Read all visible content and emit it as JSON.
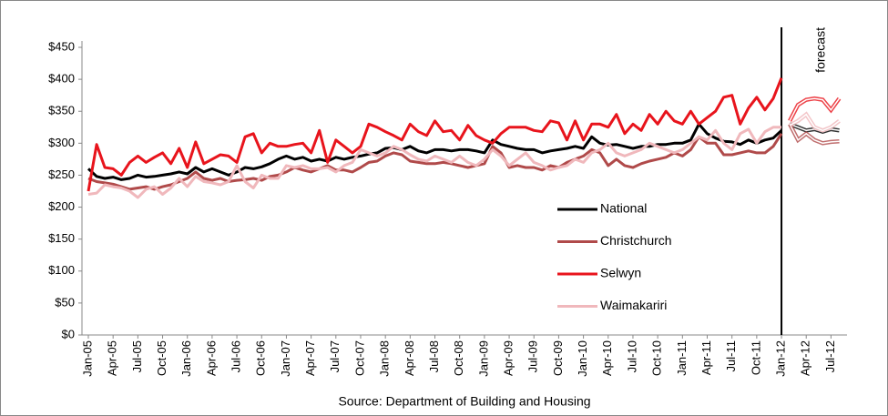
{
  "chart_data": {
    "type": "line",
    "categories": [
      "Jan-05",
      null,
      null,
      "Apr-05",
      null,
      null,
      "Jul-05",
      null,
      null,
      "Oct-05",
      null,
      null,
      "Jan-06",
      null,
      null,
      "Apr-06",
      null,
      null,
      "Jul-06",
      null,
      null,
      "Oct-06",
      null,
      null,
      "Jan-07",
      null,
      null,
      "Apr-07",
      null,
      null,
      "Jul-07",
      null,
      null,
      "Oct-07",
      null,
      null,
      "Jan-08",
      null,
      null,
      "Apr-08",
      null,
      null,
      "Jul-08",
      null,
      null,
      "Oct-08",
      null,
      null,
      "Jan-09",
      null,
      null,
      "Apr-09",
      null,
      null,
      "Jul-09",
      null,
      null,
      "Oct-09",
      null,
      null,
      "Jan-10",
      null,
      null,
      "Apr-10",
      null,
      null,
      "Jul-10",
      null,
      null,
      "Oct-10",
      null,
      null,
      "Jan-11",
      null,
      null,
      "Apr-11",
      null,
      null,
      "Jul-11",
      null,
      null,
      "Oct-11",
      null,
      null,
      "Jan-12",
      null,
      null,
      "Apr-12",
      null,
      null,
      "Jul-12",
      null
    ],
    "series": [
      {
        "name": "National",
        "color": "#000000",
        "values": [
          260,
          248,
          245,
          247,
          243,
          245,
          250,
          247,
          248,
          250,
          252,
          255,
          252,
          262,
          255,
          260,
          255,
          250,
          255,
          262,
          260,
          263,
          268,
          275,
          280,
          275,
          278,
          272,
          275,
          272,
          278,
          275,
          278,
          280,
          283,
          285,
          292,
          293,
          290,
          295,
          288,
          285,
          290,
          290,
          288,
          290,
          290,
          288,
          285,
          305,
          298,
          295,
          292,
          290,
          290,
          285,
          288,
          290,
          292,
          295,
          292,
          310,
          300,
          297,
          298,
          295,
          292,
          295,
          295,
          298,
          298,
          300,
          300,
          305,
          330,
          315,
          308,
          303,
          302,
          298,
          305,
          300,
          305,
          308,
          320,
          330,
          325,
          320,
          322,
          318,
          322,
          320
        ]
      },
      {
        "name": "Christchurch",
        "color": "#b04a4a",
        "values": [
          245,
          240,
          238,
          236,
          232,
          228,
          230,
          232,
          228,
          232,
          235,
          240,
          245,
          255,
          245,
          242,
          245,
          240,
          242,
          243,
          245,
          242,
          248,
          250,
          255,
          262,
          258,
          255,
          260,
          265,
          258,
          258,
          255,
          262,
          270,
          272,
          280,
          285,
          282,
          272,
          270,
          268,
          268,
          270,
          268,
          265,
          262,
          265,
          268,
          295,
          285,
          262,
          265,
          262,
          262,
          258,
          265,
          262,
          270,
          275,
          280,
          290,
          285,
          265,
          275,
          265,
          262,
          268,
          272,
          275,
          278,
          285,
          280,
          290,
          310,
          300,
          300,
          282,
          282,
          285,
          288,
          285,
          285,
          295,
          315,
          330,
          305,
          315,
          305,
          300,
          302,
          303
        ]
      },
      {
        "name": "Selwyn",
        "color": "#e8141c",
        "values": [
          225,
          298,
          262,
          260,
          250,
          270,
          280,
          270,
          278,
          285,
          268,
          292,
          262,
          302,
          268,
          275,
          282,
          280,
          270,
          310,
          315,
          285,
          300,
          295,
          295,
          298,
          300,
          285,
          320,
          270,
          305,
          295,
          285,
          295,
          330,
          325,
          318,
          312,
          305,
          330,
          318,
          312,
          335,
          318,
          320,
          305,
          328,
          312,
          305,
          300,
          315,
          325,
          325,
          325,
          320,
          318,
          335,
          332,
          305,
          335,
          305,
          330,
          330,
          325,
          345,
          315,
          330,
          320,
          345,
          330,
          350,
          335,
          330,
          350,
          330,
          340,
          350,
          372,
          375,
          330,
          355,
          372,
          352,
          370,
          402,
          335,
          360,
          368,
          370,
          368,
          352,
          370
        ]
      },
      {
        "name": "Waimakariri",
        "color": "#f0b8bc",
        "values": [
          220,
          222,
          235,
          232,
          230,
          225,
          215,
          228,
          232,
          220,
          230,
          245,
          232,
          248,
          240,
          238,
          235,
          240,
          265,
          240,
          230,
          250,
          245,
          245,
          265,
          262,
          265,
          260,
          260,
          262,
          255,
          265,
          270,
          290,
          285,
          280,
          285,
          295,
          290,
          282,
          275,
          272,
          280,
          275,
          270,
          280,
          270,
          265,
          275,
          290,
          280,
          265,
          275,
          285,
          270,
          265,
          258,
          262,
          265,
          275,
          270,
          285,
          290,
          300,
          285,
          280,
          285,
          290,
          300,
          295,
          290,
          285,
          290,
          300,
          310,
          305,
          320,
          300,
          290,
          315,
          322,
          300,
          318,
          325,
          325,
          328,
          335,
          345,
          325,
          320,
          325,
          335
        ]
      }
    ],
    "ylim": [
      0,
      450
    ],
    "yticks": [
      {
        "value": 0,
        "label": "$0"
      },
      {
        "value": 50,
        "label": "$50"
      },
      {
        "value": 100,
        "label": "$100"
      },
      {
        "value": 150,
        "label": "$150"
      },
      {
        "value": 200,
        "label": "$200"
      },
      {
        "value": 250,
        "label": "$250"
      },
      {
        "value": 300,
        "label": "$300"
      },
      {
        "value": 350,
        "label": "$350"
      },
      {
        "value": 400,
        "label": "$400"
      },
      {
        "value": 450,
        "label": "$450"
      }
    ],
    "annotation": {
      "text": "forecast",
      "x": 84
    },
    "source": "Source: Department of Building and Housing",
    "grid": false
  }
}
